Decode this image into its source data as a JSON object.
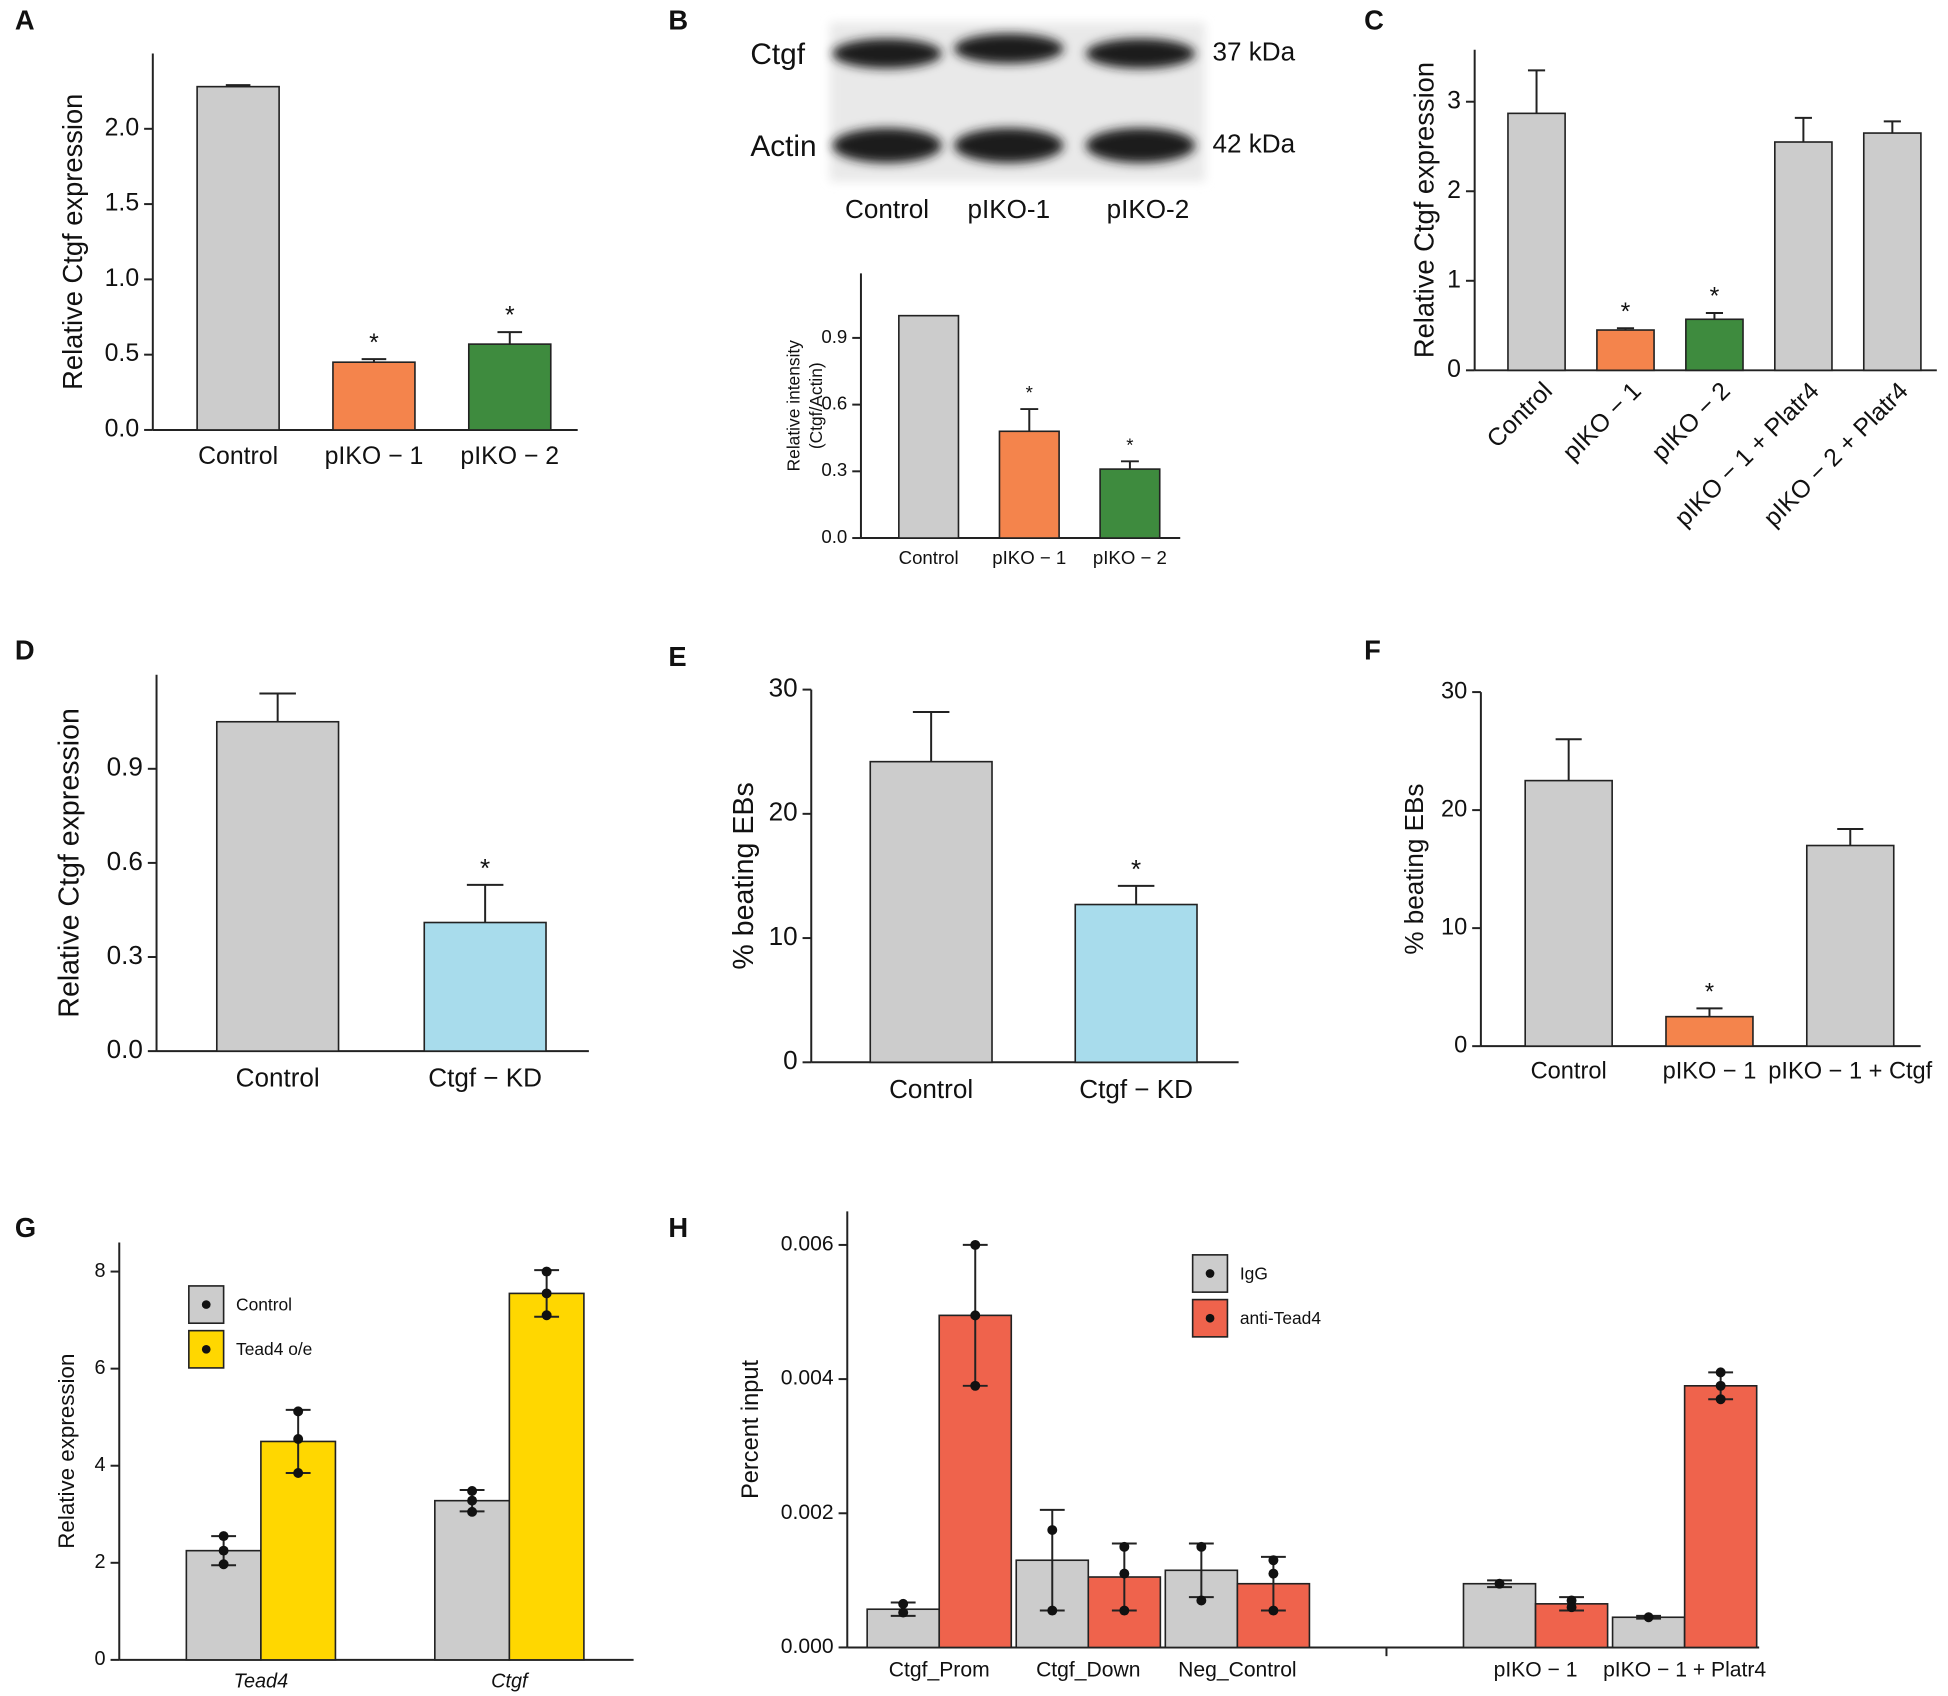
{
  "chart_data": [
    {
      "panel": "A",
      "type": "bar",
      "y_label": "Relative Ctgf expression",
      "categories": [
        "Control",
        "pIKO − 1",
        "pIKO − 2"
      ],
      "values": [
        2.28,
        0.45,
        0.57
      ],
      "errors": [
        0.01,
        0.02,
        0.08
      ],
      "colors": [
        "#cccccc",
        "#f4844c",
        "#3e8b3e"
      ],
      "stars": [
        null,
        "*",
        "*"
      ],
      "error_style": "upper",
      "ylim": [
        0,
        2.5
      ],
      "yticks": [
        {
          "value": 0,
          "label": "0.0"
        },
        0.5,
        {
          "value": 1,
          "label": "1.0"
        },
        1.5,
        {
          "value": 2,
          "label": "2.0"
        }
      ]
    },
    {
      "panel": "B",
      "type": "bar",
      "blot": {
        "rows": [
          "Ctgf",
          "Actin"
        ],
        "sizes": [
          "37 kDa",
          "42 kDa"
        ],
        "lanes": [
          "Control",
          "pIKO-1",
          "pIKO-2"
        ]
      },
      "y_label": [
        "Relative intensity",
        "(Ctgf/Actin)"
      ],
      "categories": [
        "Control",
        "pIKO − 1",
        "pIKO − 2"
      ],
      "values": [
        1.0,
        0.48,
        0.31
      ],
      "errors": [
        null,
        0.1,
        0.035
      ],
      "colors": [
        "#cccccc",
        "#f4844c",
        "#3e8b3e"
      ],
      "stars": [
        null,
        "*",
        "*"
      ],
      "error_style": "upper",
      "ylim": [
        0,
        1.19
      ],
      "yticks": [
        {
          "value": 0,
          "label": "0.0"
        },
        0.3,
        0.6,
        0.9
      ]
    },
    {
      "panel": "C",
      "type": "bar",
      "y_label": "Relative Ctgf expression",
      "categories": [
        "Control",
        "pIKO − 1",
        "pIKO − 2",
        "pIKO − 1 + Platr4",
        "pIKO − 2 + Platr4"
      ],
      "values": [
        2.87,
        0.45,
        0.57,
        2.55,
        2.65
      ],
      "errors": [
        0.48,
        0.02,
        0.07,
        0.27,
        0.13
      ],
      "colors": [
        "#cccccc",
        "#f4844c",
        "#3e8b3e",
        "#cccccc",
        "#cccccc"
      ],
      "stars": [
        null,
        "*",
        "*",
        null,
        null
      ],
      "error_style": "upper",
      "ylim": [
        0,
        3.58
      ],
      "yticks": [
        0,
        1,
        2,
        3
      ]
    },
    {
      "panel": "D",
      "type": "bar",
      "y_label": "Relative Ctgf expression",
      "categories": [
        "Control",
        "Ctgf − KD"
      ],
      "values": [
        1.05,
        0.41
      ],
      "errors": [
        0.09,
        0.12
      ],
      "colors": [
        "#cccccc",
        "#a8dcec"
      ],
      "stars": [
        null,
        "*"
      ],
      "error_style": "upper",
      "ylim": [
        0,
        1.2
      ],
      "yticks": [
        {
          "value": 0,
          "label": "0.0"
        },
        0.3,
        0.6,
        0.9
      ]
    },
    {
      "panel": "E",
      "type": "bar",
      "y_label": "% beating EBs",
      "categories": [
        "Control",
        "Ctgf − KD"
      ],
      "values": [
        24.2,
        12.7
      ],
      "errors": [
        4.0,
        1.5
      ],
      "colors": [
        "#cccccc",
        "#a8dcec"
      ],
      "stars": [
        null,
        "*"
      ],
      "error_style": "upper",
      "ylim": [
        0,
        30
      ],
      "yticks": [
        0,
        10,
        20,
        30
      ]
    },
    {
      "panel": "F",
      "type": "bar",
      "y_label": "% beating EBs",
      "categories": [
        "Control",
        "pIKO − 1",
        "pIKO − 1 + Ctgf"
      ],
      "values": [
        22.5,
        2.5,
        17.0
      ],
      "errors": [
        3.5,
        0.7,
        1.4
      ],
      "colors": [
        "#cccccc",
        "#f4844c",
        "#cccccc"
      ],
      "stars": [
        null,
        "*",
        null
      ],
      "error_style": "upper",
      "ylim": [
        0,
        30
      ],
      "yticks": [
        0,
        10,
        20,
        30
      ]
    },
    {
      "panel": "G",
      "type": "bar",
      "y_label": "Relative expression",
      "legend": "top-left",
      "error_style": "both",
      "categories": [
        "Tead4",
        "Ctgf"
      ],
      "series": [
        {
          "name": "Control",
          "color": "#cccccc",
          "values": [
            2.25,
            3.28
          ],
          "errors": [
            0.3,
            0.22
          ],
          "points": [
            [
              1.97,
              2.25,
              2.55
            ],
            [
              3.05,
              3.28,
              3.48
            ]
          ]
        },
        {
          "name": "Tead4 o/e",
          "color": "#ffd700",
          "values": [
            4.5,
            7.55
          ],
          "errors": [
            0.65,
            0.48
          ],
          "points": [
            [
              3.85,
              4.55,
              5.12
            ],
            [
              7.1,
              7.55,
              8.0
            ]
          ]
        }
      ],
      "ylim": [
        0,
        8.6
      ],
      "yticks": [
        0,
        2,
        4,
        6,
        8
      ]
    },
    {
      "panel": "H",
      "type": "bar",
      "y_label": "Percent input",
      "legend": "top",
      "error_style": "both",
      "categories": [
        "Ctgf_Prom",
        "Ctgf_Down",
        "Neg_Control",
        null,
        "pIKO − 1",
        "pIKO − 1 + Platr4"
      ],
      "series": [
        {
          "name": "IgG",
          "color": "#cccccc",
          "values": [
            0.00057,
            0.0013,
            0.00115,
            null,
            0.00095,
            0.00045
          ],
          "errors": [
            0.0001,
            0.00075,
            0.0004,
            null,
            5e-05,
            2e-05
          ],
          "points": [
            [
              0.00052,
              0.00065
            ],
            [
              0.00175,
              0.00055
            ],
            [
              0.0015,
              0.0007
            ],
            null,
            [
              0.00095
            ],
            [
              0.00045
            ]
          ]
        },
        {
          "name": "anti-Tead4",
          "color": "#ef634c",
          "values": [
            0.00495,
            0.00105,
            0.00095,
            null,
            0.00065,
            0.0039
          ],
          "errors": [
            0.00105,
            0.0005,
            0.0004,
            null,
            0.0001,
            0.0002
          ],
          "points": [
            [
              0.006,
              0.00495,
              0.0039
            ],
            [
              0.0015,
              0.0011,
              0.00055
            ],
            [
              0.0013,
              0.0011,
              0.00055
            ],
            null,
            [
              0.0007,
              0.0006
            ],
            [
              0.0041,
              0.0039,
              0.0037
            ]
          ]
        }
      ],
      "ylim": [
        0,
        0.0065
      ],
      "yticks": [
        {
          "value": 0,
          "label": "0.000"
        },
        {
          "value": 0.002,
          "label": "0.002"
        },
        {
          "value": 0.004,
          "label": "0.004"
        },
        {
          "value": 0.006,
          "label": "0.006"
        }
      ]
    }
  ]
}
